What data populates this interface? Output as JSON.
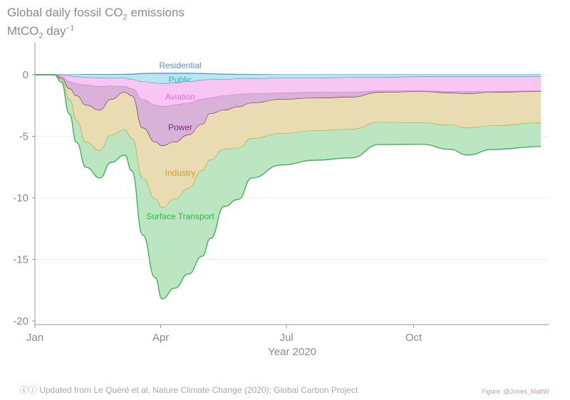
{
  "chart_data": {
    "type": "area",
    "stacked": true,
    "title": "Global daily fossil CO2 emissions",
    "title_parts": {
      "pre": "Global daily fossil CO",
      "sub": "2",
      "post": " emissions"
    },
    "ylabel": "MtCO2 day-1",
    "ylabel_parts": {
      "pre": "MtCO",
      "sub": "2",
      "mid": " day",
      "sup": "−1"
    },
    "xlabel": "Year 2020",
    "ylim": [
      -20.5,
      2.5
    ],
    "yticks": [
      0,
      -5,
      -10,
      -15,
      -20
    ],
    "ytick_labels": [
      "0",
      "-5",
      "-10",
      "-15",
      "-20"
    ],
    "xlim_days": [
      0,
      371
    ],
    "xticks": [
      {
        "day": 0,
        "label": "Jan"
      },
      {
        "day": 91,
        "label": "Apr"
      },
      {
        "day": 182,
        "label": "Jul"
      },
      {
        "day": 274,
        "label": "Oct"
      }
    ],
    "grid": "horizontal",
    "x_day_of_year": [
      0,
      14,
      19,
      25,
      30,
      37,
      47,
      55,
      65,
      70,
      78,
      87,
      92,
      101,
      111,
      121,
      127,
      137,
      147,
      157,
      178,
      203,
      229,
      249,
      280,
      300,
      313,
      331,
      366
    ],
    "series": [
      {
        "name": "Residential",
        "color": "#5b8fd6",
        "fill": "#c9dbf3",
        "values": [
          0,
          0,
          0,
          0,
          0,
          0.02,
          0.02,
          0.02,
          0.03,
          0.05,
          0.1,
          0.12,
          0.12,
          0.12,
          0.12,
          0.1,
          0.08,
          0.05,
          0.03,
          0.02,
          0,
          0,
          0,
          0,
          0,
          0,
          0,
          0,
          0
        ]
      },
      {
        "name": "Public",
        "color": "#2ab3c2",
        "fill": "#b9e7ee",
        "values": [
          0,
          0,
          -0.06,
          -0.12,
          -0.17,
          -0.23,
          -0.29,
          -0.29,
          -0.29,
          -0.4,
          -0.58,
          -0.69,
          -0.75,
          -0.69,
          -0.58,
          -0.46,
          -0.4,
          -0.4,
          -0.35,
          -0.35,
          -0.29,
          -0.29,
          -0.23,
          -0.23,
          -0.17,
          -0.17,
          -0.17,
          -0.17,
          -0.17
        ]
      },
      {
        "name": "Aviation",
        "color": "#e070dc",
        "fill": "#f7c6f3",
        "values": [
          0,
          0,
          -0.12,
          -0.46,
          -0.58,
          -0.64,
          -0.69,
          -0.64,
          -0.69,
          -0.75,
          -1.45,
          -1.79,
          -1.85,
          -1.79,
          -1.73,
          -1.56,
          -1.5,
          -1.33,
          -1.27,
          -1.21,
          -1.21,
          -1.16,
          -1.21,
          -1.1,
          -1.16,
          -1.21,
          -1.21,
          -1.21,
          -1.16
        ]
      },
      {
        "name": "Power",
        "color": "#7a2a7c",
        "fill": "#d9b2d9",
        "values": [
          0,
          0,
          -0.12,
          -0.58,
          -0.98,
          -1.62,
          -1.91,
          -1.1,
          -0.46,
          -0.58,
          -2.31,
          -3.01,
          -3.18,
          -3.01,
          -2.6,
          -2.02,
          -1.27,
          -1.16,
          -1.0,
          -0.75,
          -0.52,
          -0.46,
          -0.4,
          -0.12,
          -0.05,
          -0.12,
          -0.17,
          -0.06,
          -0.05
        ]
      },
      {
        "name": "Industry",
        "color": "#c9a227",
        "fill": "#e9dcb3",
        "values": [
          0,
          0,
          -0.12,
          -0.87,
          -2.02,
          -3.01,
          -3.29,
          -2.89,
          -3.06,
          -3.47,
          -4.05,
          -4.62,
          -5.03,
          -4.62,
          -4.34,
          -3.76,
          -3.76,
          -3.18,
          -3.35,
          -2.89,
          -2.77,
          -2.66,
          -2.6,
          -2.43,
          -2.54,
          -2.6,
          -2.77,
          -2.72,
          -2.54
        ]
      },
      {
        "name": "Surface Transport",
        "color": "#2fb548",
        "fill": "#bce6c2",
        "values": [
          0,
          0,
          -0.17,
          -1.16,
          -1.73,
          -2.02,
          -2.2,
          -2.2,
          -2.02,
          -2.6,
          -4.62,
          -6.36,
          -7.4,
          -7.23,
          -6.94,
          -6.94,
          -6.36,
          -4.62,
          -4.16,
          -3.18,
          -2.54,
          -2.37,
          -2.31,
          -1.79,
          -1.73,
          -1.95,
          -2.2,
          -1.91,
          -1.91
        ]
      }
    ]
  },
  "footer": {
    "license_icons": "cc-by-icon",
    "source": "Updated from Le Quéré et al, Nature Climate Change (2020); Global Carbon Project",
    "credit": "Figure: @Jones_MattW"
  }
}
